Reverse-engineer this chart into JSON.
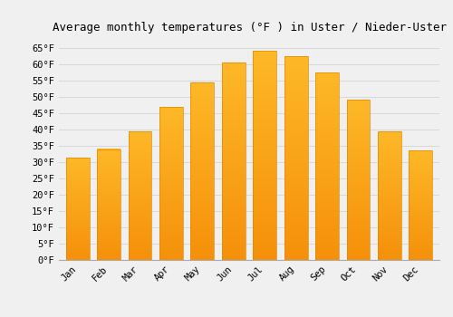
{
  "title": "Average monthly temperatures (°F ) in Uster / Nieder-Uster",
  "months": [
    "Jan",
    "Feb",
    "Mar",
    "Apr",
    "May",
    "Jun",
    "Jul",
    "Aug",
    "Sep",
    "Oct",
    "Nov",
    "Dec"
  ],
  "values": [
    31.5,
    34.0,
    39.5,
    47.0,
    54.5,
    60.5,
    64.0,
    62.5,
    57.5,
    49.0,
    39.5,
    33.5
  ],
  "bar_color_top": "#FDB827",
  "bar_color_bottom": "#F5900A",
  "bar_edge_color": "#E08800",
  "background_color": "#f0f0f0",
  "ylim": [
    0,
    68
  ],
  "yticks": [
    0,
    5,
    10,
    15,
    20,
    25,
    30,
    35,
    40,
    45,
    50,
    55,
    60,
    65
  ],
  "title_fontsize": 9,
  "tick_fontsize": 7.5,
  "grid_color": "#d8d8d8"
}
